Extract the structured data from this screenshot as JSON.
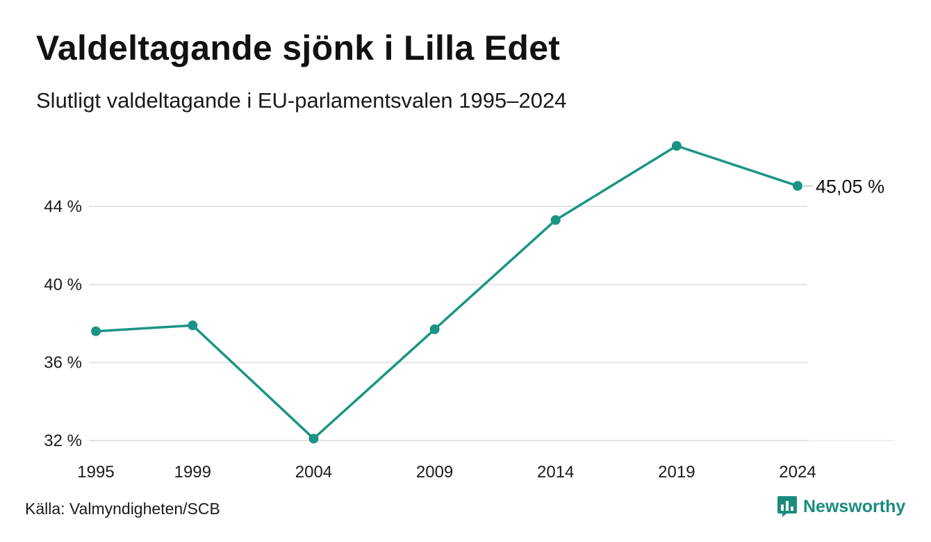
{
  "header": {
    "title": "Valdeltagande sjönk i Lilla Edet",
    "subtitle": "Slutligt valdeltagande i EU-parlamentsvalen 1995–2024"
  },
  "footer": {
    "source": "Källa: Valmyndigheten/SCB",
    "brand": "Newsworthy",
    "brand_icon": "bar-chart-speech-bubble-icon"
  },
  "colors": {
    "line": "#1a9485",
    "grid": "#e3e3e3",
    "brand": "#1a8c7f"
  },
  "chart_data": {
    "type": "line",
    "title": "Valdeltagande sjönk i Lilla Edet",
    "subtitle": "Slutligt valdeltagande i EU-parlamentsvalen 1995–2024",
    "x": [
      1995,
      1999,
      2004,
      2009,
      2014,
      2019,
      2024
    ],
    "x_tick_labels": [
      "1995",
      "1999",
      "2004",
      "2009",
      "2014",
      "2019",
      "2024"
    ],
    "series": [
      {
        "values": [
          37.6,
          37.9,
          32.1,
          37.7,
          43.3,
          47.1,
          45.05
        ]
      }
    ],
    "ylim": [
      32,
      47.5
    ],
    "y_ticks": [
      32,
      36,
      40,
      44
    ],
    "y_tick_labels": [
      "32 %",
      "36 %",
      "40 %",
      "44 %"
    ],
    "grid": true,
    "end_label": "45,05 %",
    "xlabel": "",
    "ylabel": ""
  }
}
